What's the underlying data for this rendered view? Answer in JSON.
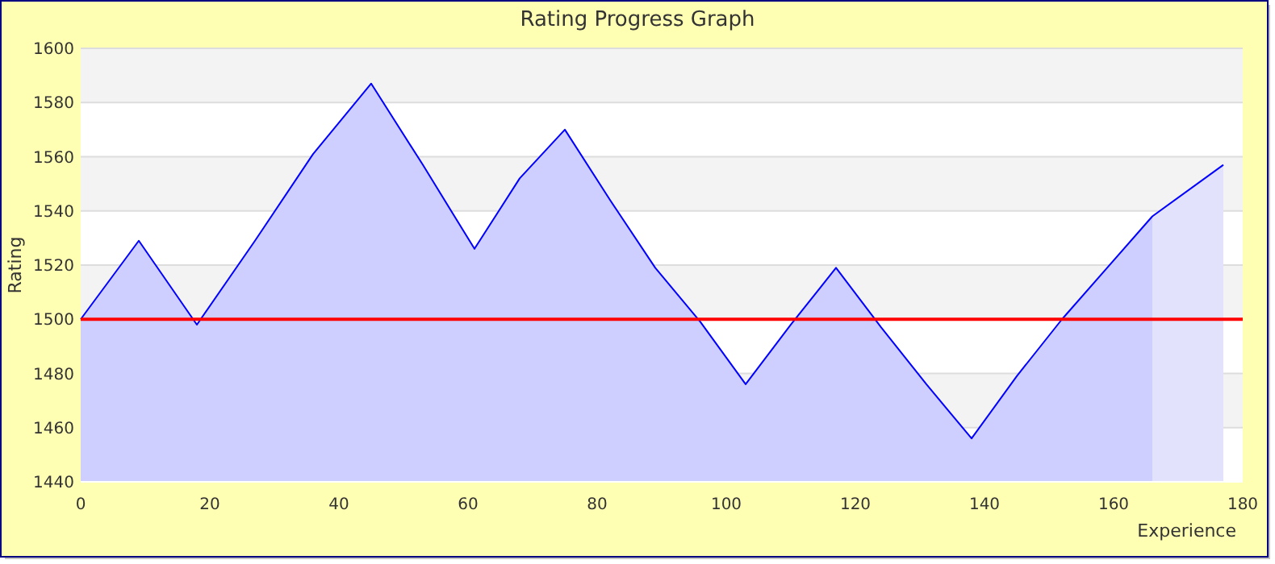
{
  "chart_data": {
    "type": "area",
    "title": "Rating Progress Graph",
    "xlabel": "Experience",
    "ylabel": "Rating",
    "x": [
      0,
      9,
      18,
      27,
      36,
      45,
      53,
      61,
      68,
      75,
      82,
      89,
      96,
      103,
      110,
      117,
      124,
      131,
      138,
      145,
      152,
      159,
      166,
      177
    ],
    "series": [
      {
        "color": "#0000ff",
        "values": [
          1500,
          1529,
          1498,
          1529,
          1561,
          1587,
          1557,
          1526,
          1552,
          1570,
          1544,
          1519,
          1499,
          1476,
          1498,
          1519,
          1497,
          1476,
          1456,
          1479,
          1500,
          1519,
          1538,
          1557
        ]
      }
    ],
    "xlim": [
      0,
      180
    ],
    "ylim": [
      1440,
      1600
    ],
    "xticks": [
      0,
      20,
      40,
      60,
      80,
      100,
      120,
      140,
      160,
      180
    ],
    "yticks": [
      1440,
      1460,
      1480,
      1500,
      1520,
      1540,
      1560,
      1580,
      1600
    ],
    "ref_lines": [
      {
        "axis": "y",
        "value": 1500,
        "color": "#ff0000"
      }
    ],
    "bands": [
      {
        "axis": "x",
        "from": 166,
        "to": 177,
        "color": "#e2e2fc"
      }
    ],
    "grid": "y"
  }
}
